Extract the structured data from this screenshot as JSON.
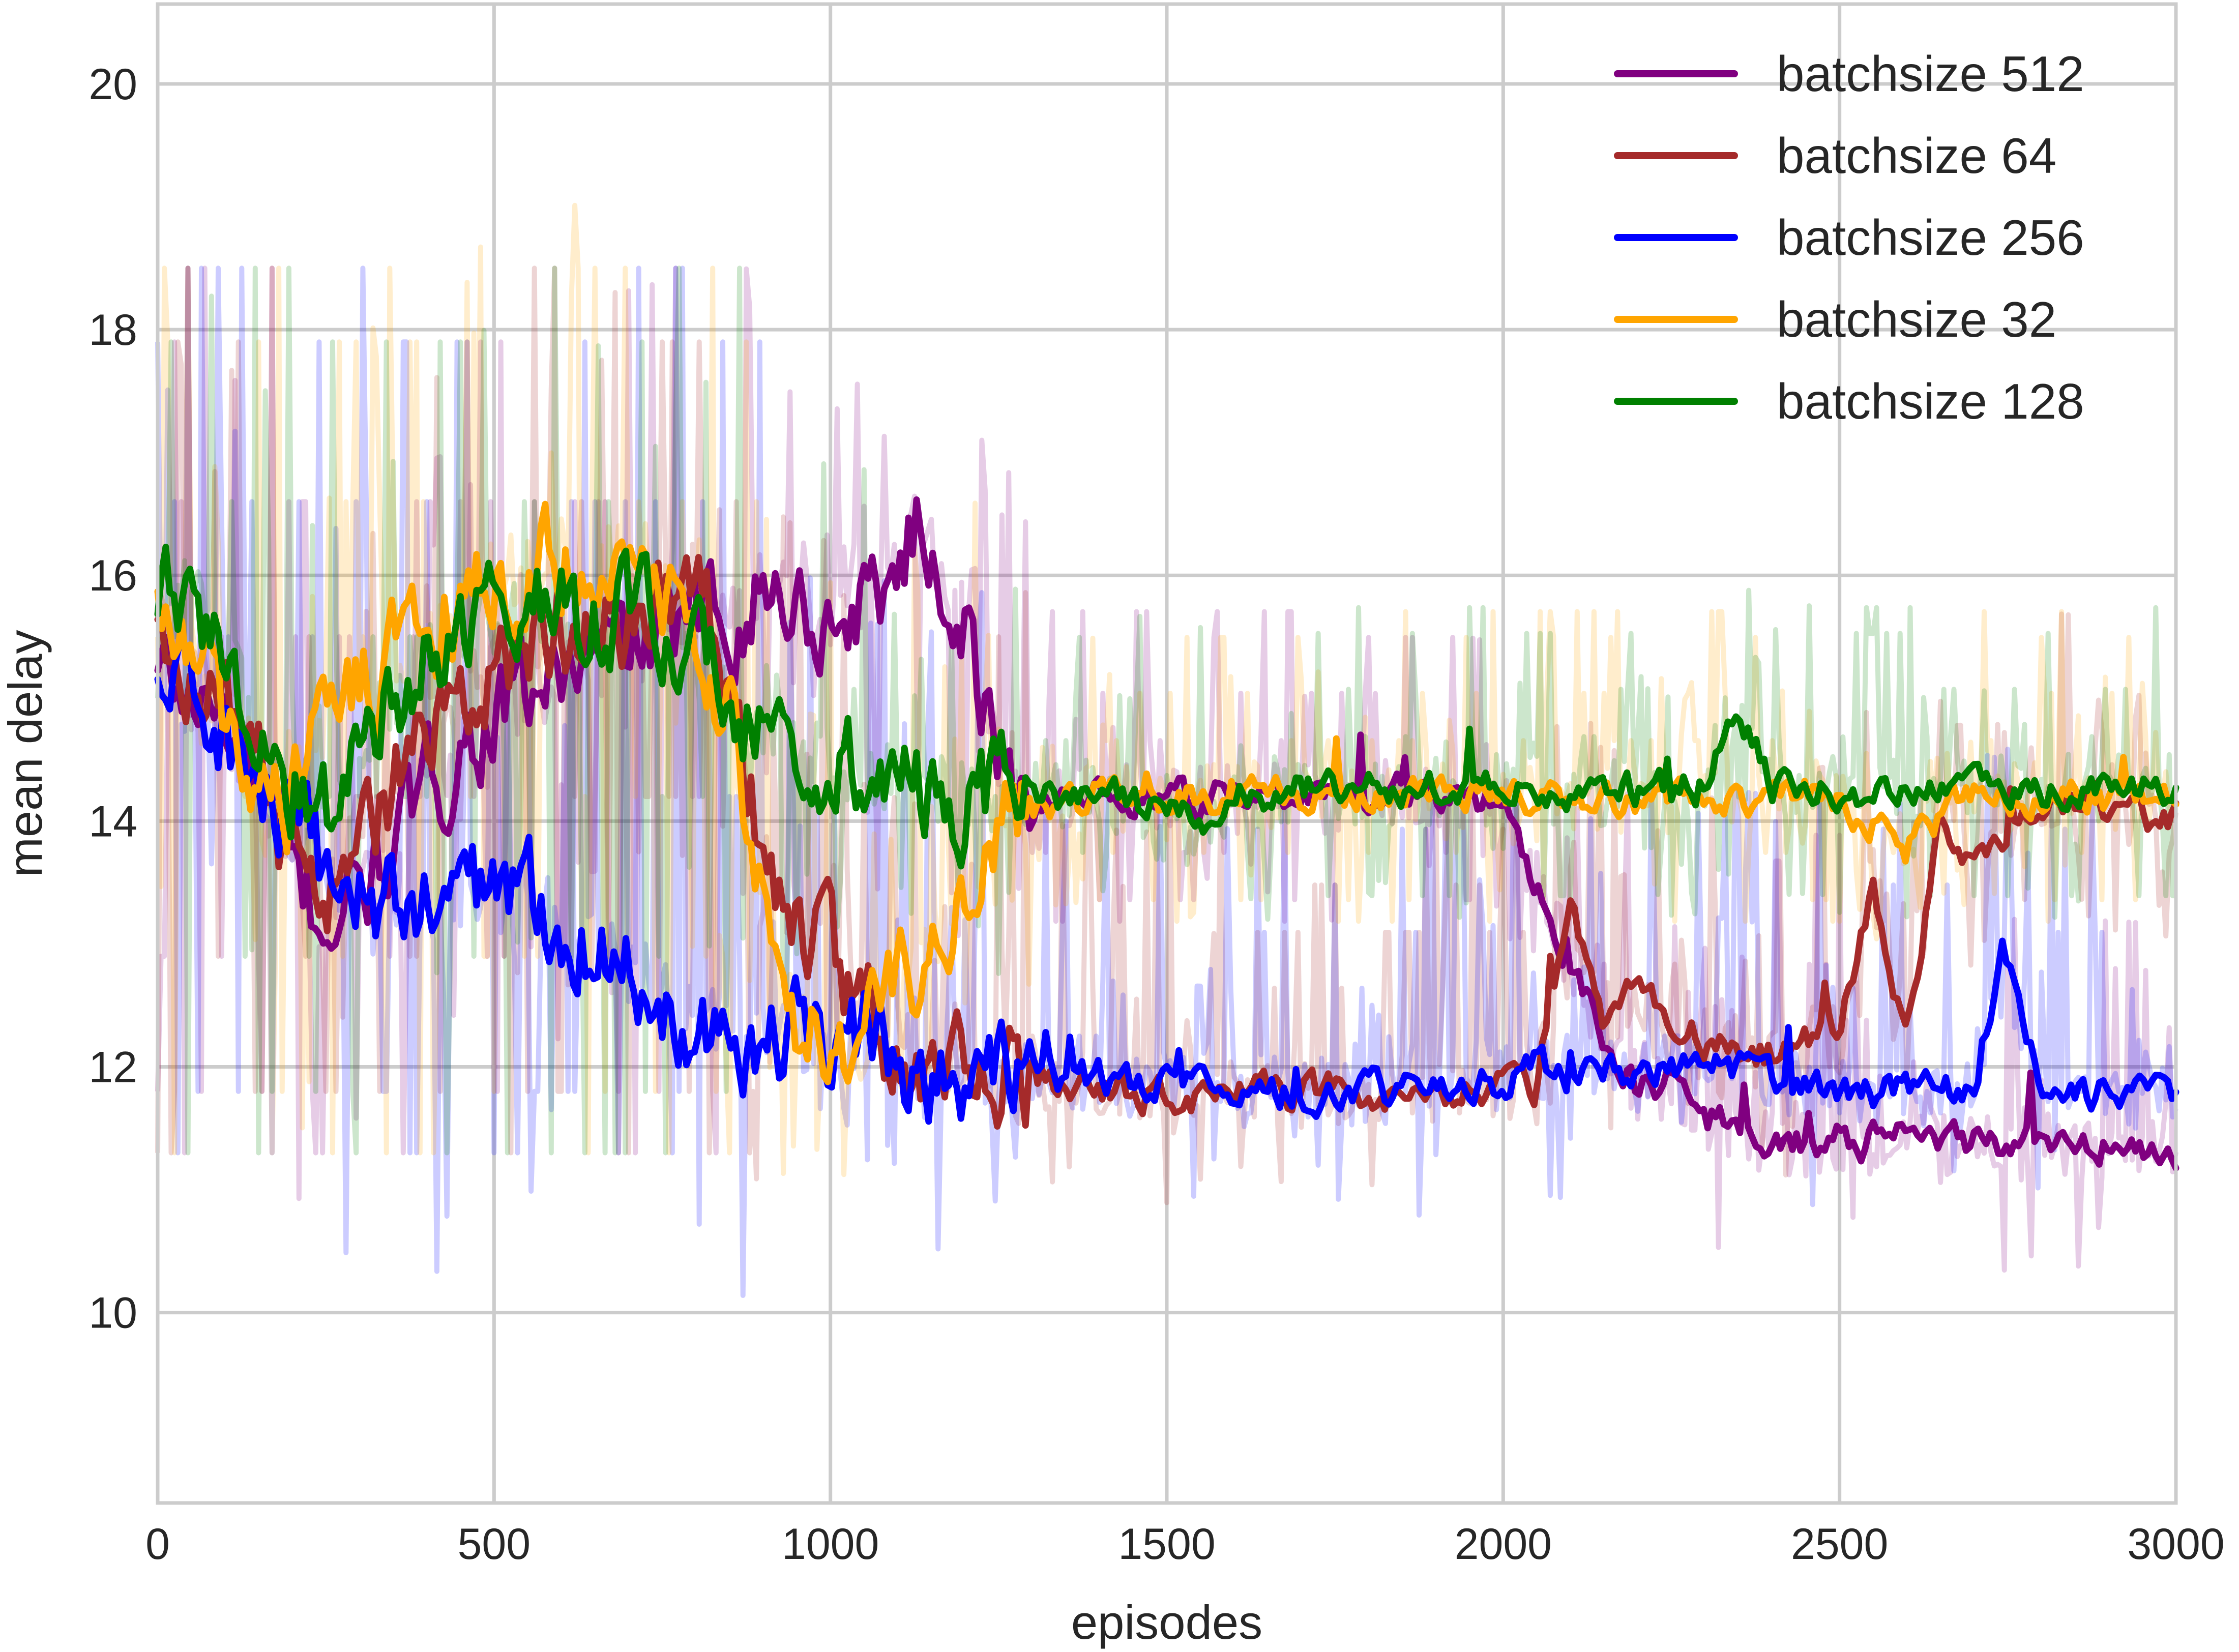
{
  "chart_data": {
    "type": "line",
    "title": "",
    "xlabel": "episodes",
    "ylabel": "mean delay",
    "xlim": [
      0,
      3000
    ],
    "ylim": [
      8.45,
      20.65
    ],
    "xticks": [
      0,
      500,
      1000,
      1500,
      2000,
      2500,
      3000
    ],
    "yticks": [
      10,
      12,
      14,
      16,
      18,
      20
    ],
    "xtick_labels": [
      "0",
      "500",
      "1000",
      "1500",
      "2000",
      "2500",
      "3000"
    ],
    "ytick_labels": [
      "10",
      "12",
      "14",
      "16",
      "18",
      "20"
    ],
    "grid": true,
    "legend_position": "top-right",
    "note_raw_traces": "each series also has a faint, highly noisy raw trace (range roughly 9 to 20) drawn behind the smoothed line",
    "series": [
      {
        "name": "batchsize 512",
        "color": "#800080",
        "x": [
          0,
          50,
          100,
          150,
          200,
          250,
          300,
          350,
          400,
          450,
          500,
          550,
          600,
          650,
          700,
          750,
          800,
          850,
          900,
          950,
          1000,
          1050,
          1100,
          1125,
          1150,
          1200,
          1250,
          1300,
          1400,
          1500,
          1600,
          1700,
          1800,
          1900,
          1950,
          2000,
          2050,
          2100,
          2150,
          2200,
          2250,
          2300,
          2350,
          2400,
          2500,
          2600,
          2700,
          2800,
          2900,
          3000
        ],
        "y": [
          15.2,
          15.0,
          14.8,
          14.2,
          13.5,
          13.2,
          13.4,
          13.8,
          14.2,
          14.6,
          14.9,
          15.0,
          15.2,
          15.3,
          15.4,
          15.5,
          15.6,
          15.7,
          15.9,
          15.8,
          15.6,
          15.8,
          16.1,
          16.4,
          16.2,
          15.6,
          14.4,
          14.2,
          14.2,
          14.2,
          14.2,
          14.2,
          14.2,
          14.2,
          14.2,
          14.1,
          13.5,
          12.9,
          12.2,
          11.8,
          11.9,
          11.6,
          11.5,
          11.4,
          11.4,
          11.4,
          11.4,
          11.35,
          11.35,
          11.3
        ]
      },
      {
        "name": "batchsize 64",
        "color": "#a52a2a",
        "x": [
          0,
          50,
          100,
          150,
          200,
          250,
          300,
          350,
          400,
          450,
          500,
          550,
          600,
          650,
          700,
          750,
          800,
          850,
          900,
          950,
          1000,
          1050,
          1100,
          1150,
          1200,
          1300,
          1400,
          1500,
          1600,
          1700,
          1800,
          1900,
          2000,
          2050,
          2100,
          2150,
          2200,
          2300,
          2400,
          2500,
          2550,
          2600,
          2650,
          2700,
          2800,
          2900,
          3000
        ],
        "y": [
          15.6,
          15.3,
          14.9,
          14.4,
          13.6,
          13.5,
          13.9,
          14.3,
          14.7,
          15.0,
          15.3,
          15.5,
          15.6,
          15.5,
          15.7,
          15.9,
          16.0,
          15.1,
          13.8,
          13.2,
          12.9,
          12.5,
          12.2,
          12.0,
          11.9,
          11.9,
          11.8,
          11.75,
          11.8,
          11.8,
          11.8,
          11.8,
          11.8,
          11.8,
          13.4,
          12.4,
          12.6,
          12.2,
          12.1,
          12.3,
          13.5,
          12.2,
          14.1,
          13.6,
          14.2,
          14.1,
          14.0
        ]
      },
      {
        "name": "batchsize 256",
        "color": "#0000ff",
        "x": [
          0,
          50,
          100,
          150,
          200,
          250,
          300,
          350,
          400,
          450,
          500,
          550,
          600,
          650,
          700,
          750,
          800,
          850,
          900,
          950,
          1000,
          1050,
          1100,
          1150,
          1200,
          1300,
          1400,
          1500,
          1600,
          1700,
          1800,
          1900,
          2000,
          2050,
          2100,
          2200,
          2300,
          2400,
          2500,
          2600,
          2700,
          2740,
          2800,
          2900,
          3000
        ],
        "y": [
          15.1,
          15.0,
          14.7,
          14.3,
          13.8,
          13.6,
          13.4,
          13.3,
          13.3,
          13.4,
          13.5,
          13.4,
          13.2,
          13.0,
          12.8,
          12.6,
          12.4,
          12.3,
          12.2,
          12.2,
          12.2,
          12.2,
          12.1,
          12.0,
          11.9,
          11.9,
          11.9,
          11.85,
          11.8,
          11.8,
          11.8,
          11.8,
          11.9,
          12.0,
          11.9,
          12.0,
          12.0,
          11.9,
          11.8,
          11.8,
          11.8,
          13.0,
          11.8,
          11.8,
          11.75
        ]
      },
      {
        "name": "batchsize 32",
        "color": "#ffa500",
        "x": [
          0,
          50,
          100,
          150,
          200,
          250,
          300,
          350,
          400,
          450,
          500,
          550,
          600,
          650,
          700,
          750,
          800,
          850,
          900,
          950,
          1000,
          1050,
          1100,
          1150,
          1200,
          1250,
          1300,
          1400,
          1500,
          1600,
          1700,
          1800,
          1900,
          2000,
          2100,
          2200,
          2300,
          2400,
          2500,
          2550,
          2600,
          2650,
          2700,
          2800,
          2900,
          3000
        ],
        "y": [
          15.8,
          15.4,
          14.8,
          13.9,
          14.2,
          14.8,
          15.1,
          15.3,
          15.6,
          15.8,
          16.0,
          16.1,
          16.2,
          16.2,
          16.1,
          15.8,
          15.6,
          14.8,
          13.5,
          12.4,
          12.1,
          12.2,
          12.6,
          13.0,
          13.6,
          14.0,
          14.1,
          14.2,
          14.2,
          14.2,
          14.2,
          14.2,
          14.2,
          14.2,
          14.2,
          14.2,
          14.2,
          14.2,
          14.2,
          14.0,
          13.8,
          14.0,
          14.2,
          14.2,
          14.2,
          14.2
        ]
      },
      {
        "name": "batchsize 128",
        "color": "#008000",
        "x": [
          0,
          50,
          100,
          150,
          200,
          250,
          300,
          350,
          400,
          450,
          500,
          550,
          600,
          650,
          700,
          750,
          800,
          850,
          900,
          950,
          1000,
          1050,
          1100,
          1150,
          1200,
          1250,
          1300,
          1400,
          1500,
          1550,
          1600,
          1700,
          1800,
          1900,
          2000,
          2100,
          2200,
          2300,
          2350,
          2400,
          2500,
          2600,
          2700,
          2800,
          2900,
          3000
        ],
        "y": [
          15.6,
          15.9,
          15.4,
          14.9,
          14.3,
          14.1,
          14.6,
          15.0,
          15.3,
          15.6,
          15.8,
          15.8,
          15.7,
          15.6,
          15.7,
          15.5,
          15.3,
          15.0,
          14.8,
          14.6,
          14.5,
          14.4,
          14.3,
          14.3,
          14.2,
          14.2,
          14.2,
          14.2,
          14.1,
          14.0,
          14.2,
          14.25,
          14.25,
          14.25,
          14.25,
          14.25,
          14.25,
          14.3,
          15.0,
          14.3,
          14.25,
          14.25,
          14.25,
          14.25,
          14.25,
          14.25
        ]
      }
    ]
  }
}
